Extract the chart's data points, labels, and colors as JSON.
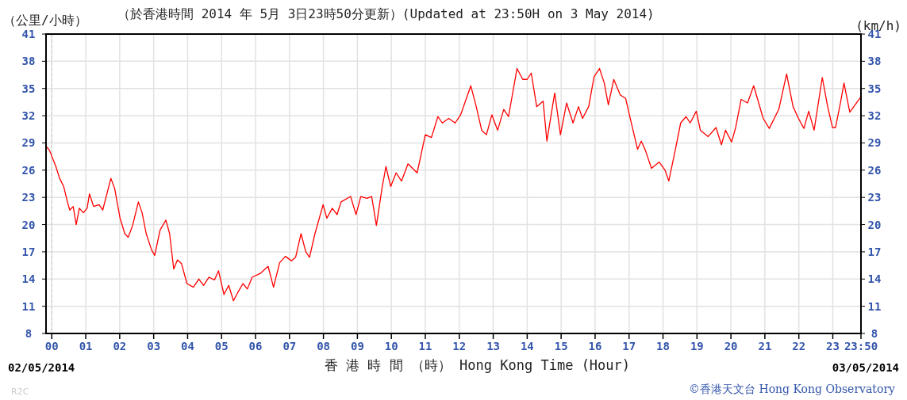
{
  "chart_data": {
    "type": "line",
    "title": "（於香港時間 2014 年 5月 3日23時50分更新）(Updated at 23:50H on 3 May 2014)",
    "xlabel": "香 港 時 間 （時） Hong Kong Time (Hour)",
    "ylabel": "（公里/小時）",
    "y2label": "(km/h)",
    "annotations": [
      "02/05/2014",
      "03/05/2014",
      "©香港天文台 Hong Kong Observatory",
      "R2C"
    ],
    "xlim": [
      -0.17,
      23.83
    ],
    "ylim": [
      8,
      41
    ],
    "y2lim": [
      8,
      41
    ],
    "xticks": [
      {
        "value": 0,
        "label": "00"
      },
      {
        "value": 1,
        "label": "01"
      },
      {
        "value": 2,
        "label": "02"
      },
      {
        "value": 3,
        "label": "03"
      },
      {
        "value": 4,
        "label": "04"
      },
      {
        "value": 5,
        "label": "05"
      },
      {
        "value": 6,
        "label": "06"
      },
      {
        "value": 7,
        "label": "07"
      },
      {
        "value": 8,
        "label": "08"
      },
      {
        "value": 9,
        "label": "09"
      },
      {
        "value": 10,
        "label": "10"
      },
      {
        "value": 11,
        "label": "11"
      },
      {
        "value": 12,
        "label": "12"
      },
      {
        "value": 13,
        "label": "13"
      },
      {
        "value": 14,
        "label": "14"
      },
      {
        "value": 15,
        "label": "15"
      },
      {
        "value": 16,
        "label": "16"
      },
      {
        "value": 17,
        "label": "17"
      },
      {
        "value": 18,
        "label": "18"
      },
      {
        "value": 19,
        "label": "19"
      },
      {
        "value": 20,
        "label": "20"
      },
      {
        "value": 21,
        "label": "21"
      },
      {
        "value": 22,
        "label": "22"
      },
      {
        "value": 23,
        "label": "23"
      },
      {
        "value": 23.83,
        "label": "23:50"
      }
    ],
    "yticks": [
      8,
      11,
      14,
      17,
      20,
      23,
      26,
      29,
      32,
      35,
      38,
      41
    ],
    "y2ticks": [
      8,
      11,
      14,
      17,
      20,
      23,
      26,
      29,
      32,
      35,
      38,
      41
    ],
    "grid": true,
    "line_style": "solid",
    "ref_lines": [
      {
        "axis": "x",
        "value": 0,
        "line_style": "dashed",
        "color": "#cccccc"
      }
    ],
    "series": [
      {
        "color": "#ff0000",
        "x": [
          -0.16,
          -0.07,
          0.12,
          0.23,
          0.35,
          0.46,
          0.53,
          0.63,
          0.72,
          0.81,
          0.93,
          1.04,
          1.11,
          1.23,
          1.39,
          1.5,
          1.74,
          1.85,
          2.01,
          2.15,
          2.25,
          2.38,
          2.55,
          2.66,
          2.78,
          2.94,
          3.03,
          3.19,
          3.36,
          3.47,
          3.59,
          3.7,
          3.82,
          3.98,
          4.17,
          4.33,
          4.47,
          4.63,
          4.79,
          4.91,
          5.07,
          5.21,
          5.35,
          5.49,
          5.63,
          5.76,
          5.9,
          6.13,
          6.37,
          6.53,
          6.71,
          6.88,
          7.06,
          7.18,
          7.34,
          7.48,
          7.59,
          7.75,
          7.99,
          8.1,
          8.26,
          8.4,
          8.52,
          8.8,
          8.96,
          9.1,
          9.28,
          9.42,
          9.56,
          9.72,
          9.84,
          9.98,
          10.14,
          10.3,
          10.49,
          10.76,
          11.0,
          11.18,
          11.37,
          11.5,
          11.69,
          11.88,
          12.04,
          12.34,
          12.5,
          12.66,
          12.8,
          12.96,
          13.13,
          13.31,
          13.45,
          13.7,
          13.87,
          14.0,
          14.12,
          14.28,
          14.47,
          14.58,
          14.81,
          14.98,
          15.16,
          15.35,
          15.51,
          15.63,
          15.81,
          15.97,
          16.13,
          16.27,
          16.39,
          16.55,
          16.74,
          16.9,
          17.01,
          17.25,
          17.36,
          17.48,
          17.66,
          17.89,
          18.06,
          18.17,
          18.36,
          18.52,
          18.68,
          18.8,
          18.98,
          19.1,
          19.33,
          19.56,
          19.72,
          19.84,
          20.02,
          20.14,
          20.3,
          20.49,
          20.67,
          20.95,
          21.13,
          21.41,
          21.64,
          21.83,
          21.99,
          22.15,
          22.29,
          22.45,
          22.69,
          22.85,
          22.99,
          23.08,
          23.22,
          23.33,
          23.5,
          23.83
        ],
        "values": [
          28.6,
          28.2,
          26.4,
          25.1,
          24.2,
          22.5,
          21.6,
          22.0,
          20.0,
          21.8,
          21.3,
          21.8,
          23.4,
          22.0,
          22.2,
          21.6,
          25.1,
          24.0,
          20.7,
          19.0,
          18.6,
          19.9,
          22.5,
          21.3,
          19.0,
          17.2,
          16.6,
          19.4,
          20.5,
          19.0,
          15.1,
          16.1,
          15.7,
          13.5,
          13.1,
          14.0,
          13.3,
          14.2,
          13.9,
          14.9,
          12.3,
          13.3,
          11.6,
          12.6,
          13.5,
          12.9,
          14.2,
          14.6,
          15.4,
          13.1,
          15.8,
          16.5,
          16.0,
          16.4,
          19.0,
          17.0,
          16.4,
          19.0,
          22.2,
          20.7,
          21.8,
          21.1,
          22.5,
          23.1,
          21.1,
          23.1,
          22.9,
          23.1,
          19.9,
          23.9,
          26.4,
          24.2,
          25.7,
          24.8,
          26.7,
          25.7,
          29.9,
          29.6,
          31.9,
          31.2,
          31.7,
          31.2,
          32.1,
          35.3,
          33.0,
          30.4,
          29.9,
          32.1,
          30.4,
          32.7,
          31.9,
          37.2,
          36.0,
          36.0,
          36.7,
          33.0,
          33.6,
          29.2,
          34.5,
          29.9,
          33.4,
          31.2,
          33.0,
          31.7,
          33.0,
          36.3,
          37.2,
          35.6,
          33.2,
          36.0,
          34.3,
          33.9,
          32.1,
          28.3,
          29.2,
          28.2,
          26.2,
          26.9,
          26.0,
          24.8,
          28.2,
          31.2,
          31.9,
          31.2,
          32.5,
          30.4,
          29.7,
          30.7,
          28.8,
          30.4,
          29.1,
          30.7,
          33.8,
          33.4,
          35.3,
          31.7,
          30.6,
          32.7,
          36.6,
          33.0,
          31.7,
          30.6,
          32.5,
          30.4,
          36.2,
          33.0,
          30.7,
          30.7,
          33.3,
          35.6,
          32.4,
          34.1
        ]
      }
    ]
  }
}
